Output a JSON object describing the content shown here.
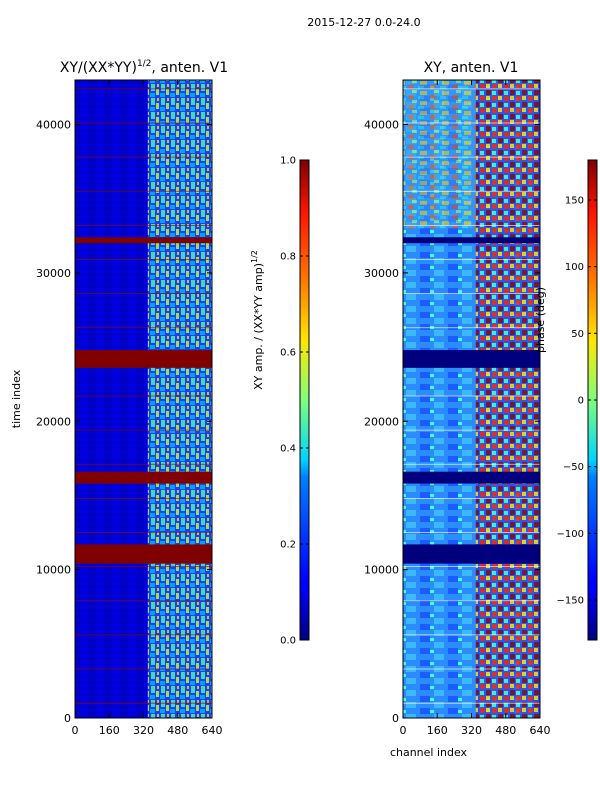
{
  "page_title": "2015-12-27 0.0-24.0",
  "colors": {
    "accent_high": "#800000",
    "accent_low": "#00007f",
    "axis": "#000000"
  },
  "chart_data": [
    {
      "type": "heatmap",
      "title_main": "XY/(XX*YY)",
      "title_sup": "1/2",
      "title_tail": ", anten. V1",
      "xlabel": "",
      "ylabel": "time index",
      "xlim": [
        0,
        640
      ],
      "ylim": [
        0,
        43000
      ],
      "xticks": [
        0,
        160,
        320,
        480,
        640
      ],
      "xtick_labels": [
        "0",
        "160",
        "320",
        "480",
        "640"
      ],
      "yticks": [
        0,
        10000,
        20000,
        30000,
        40000
      ],
      "ytick_labels": [
        "0",
        "10000",
        "20000",
        "30000",
        "40000"
      ],
      "colormap": "jet",
      "colorbar": {
        "label_main": "XY amp. / (XX*YY amp)",
        "label_sup": "1/2",
        "range": [
          0.0,
          1.0
        ],
        "ticks": [
          0.0,
          0.2,
          0.4,
          0.6,
          0.8,
          1.0
        ],
        "tick_labels": [
          "0.0",
          "0.2",
          "0.4",
          "0.6",
          "0.8",
          "1.0"
        ]
      },
      "saturated_bands": [
        [
          10400,
          11700
        ],
        [
          15800,
          16600
        ],
        [
          23600,
          24800
        ],
        [
          32000,
          32400
        ]
      ],
      "gap_bands": []
    },
    {
      "type": "heatmap",
      "title_main": "XY, anten. V1",
      "title_sup": "",
      "title_tail": "",
      "xlabel": "channel index",
      "ylabel": "",
      "xlim": [
        0,
        640
      ],
      "ylim": [
        0,
        43000
      ],
      "xticks": [
        0,
        160,
        320,
        480,
        640
      ],
      "xtick_labels": [
        "0",
        "160",
        "320",
        "480",
        "640"
      ],
      "yticks": [
        0,
        10000,
        20000,
        30000,
        40000
      ],
      "ytick_labels": [
        "0",
        "10000",
        "20000",
        "30000",
        "40000"
      ],
      "colormap": "jet",
      "colorbar": {
        "label_main": "phase (deg)",
        "label_sup": "",
        "range": [
          -180,
          180
        ],
        "ticks": [
          -150,
          -100,
          -50,
          0,
          50,
          100,
          150
        ],
        "tick_labels": [
          "−150",
          "−100",
          "−50",
          "0",
          "50",
          "100",
          "150"
        ]
      },
      "saturated_bands": [],
      "gap_bands": [
        [
          10400,
          11700
        ],
        [
          15800,
          16600
        ],
        [
          23600,
          24800
        ],
        [
          32000,
          32400
        ]
      ]
    }
  ]
}
